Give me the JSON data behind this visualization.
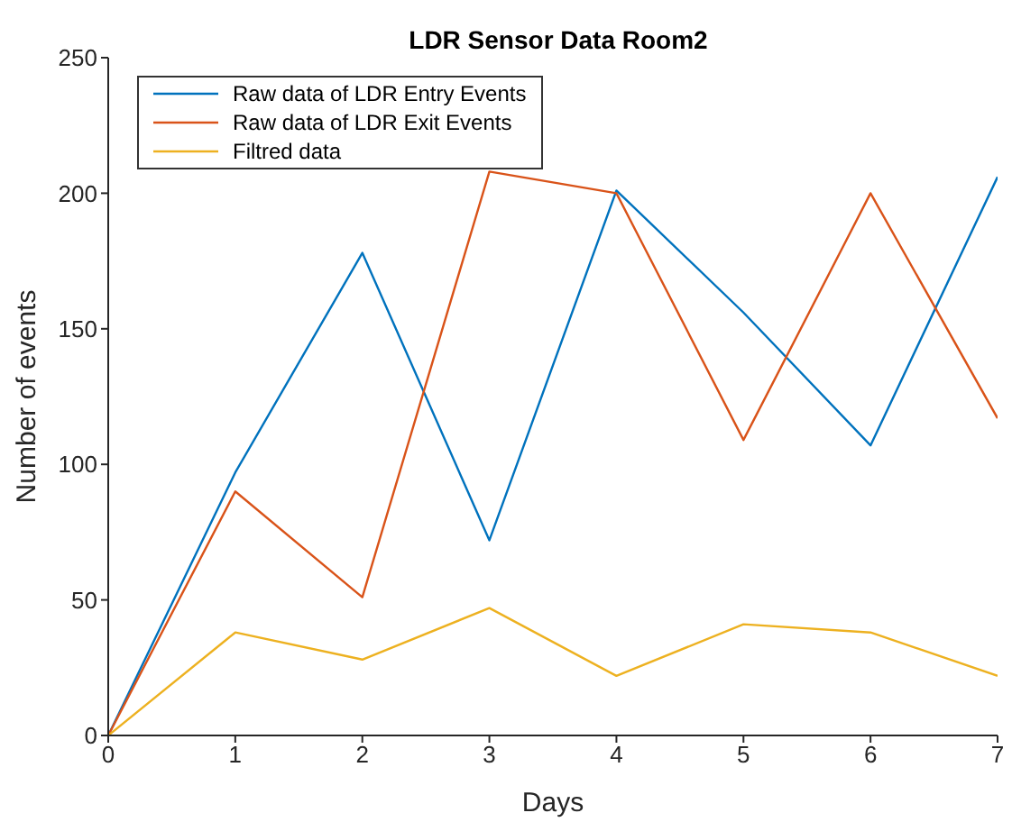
{
  "chart_data": {
    "type": "line",
    "title": "LDR Sensor Data Room2",
    "xlabel": "Days",
    "ylabel": "Number of events",
    "x": [
      0,
      1,
      2,
      3,
      4,
      5,
      6,
      7
    ],
    "series": [
      {
        "name": "Raw data of LDR Entry Events",
        "color": "#0072bd",
        "values": [
          0,
          97,
          178,
          72,
          201,
          156,
          107,
          206
        ]
      },
      {
        "name": "Raw data of LDR Exit Events",
        "color": "#d95319",
        "values": [
          0,
          90,
          51,
          208,
          200,
          109,
          200,
          117
        ]
      },
      {
        "name": "Filtred data",
        "color": "#edb120",
        "values": [
          0,
          38,
          28,
          47,
          22,
          41,
          38,
          22
        ]
      }
    ],
    "xlim": [
      0,
      7
    ],
    "xticks": [
      0,
      1,
      2,
      3,
      4,
      5,
      6,
      7
    ],
    "ylim": [
      0,
      250
    ],
    "yticks": [
      0,
      50,
      100,
      150,
      200,
      250
    ],
    "grid": false,
    "legend": "top left",
    "marker": "none",
    "line_style": "solid"
  }
}
